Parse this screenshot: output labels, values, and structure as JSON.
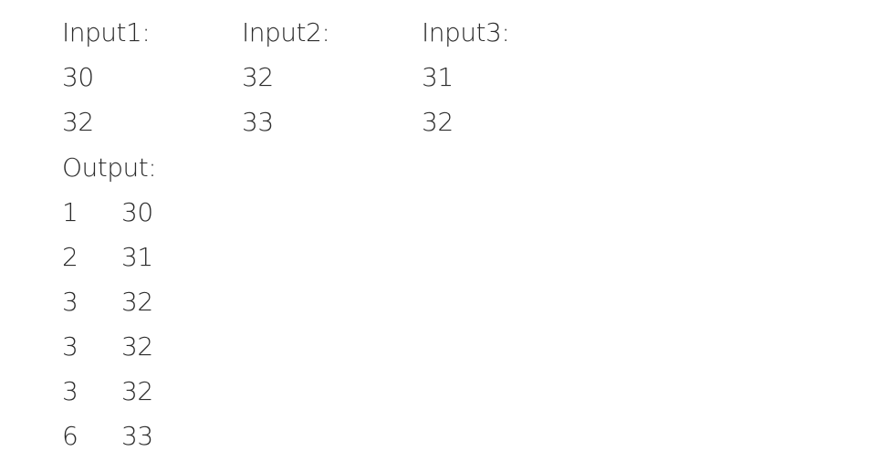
{
  "inputs": [
    {
      "label": "Input1:",
      "values": [
        "30",
        "32"
      ]
    },
    {
      "label": "Input2:",
      "values": [
        "32",
        "33"
      ]
    },
    {
      "label": "Input3:",
      "values": [
        "31",
        "32"
      ]
    }
  ],
  "output": {
    "label": "Output:",
    "rows": [
      {
        "index": "1",
        "value": "30"
      },
      {
        "index": "2",
        "value": "31"
      },
      {
        "index": "3",
        "value": "32"
      },
      {
        "index": "3",
        "value": "32"
      },
      {
        "index": "3",
        "value": "32"
      },
      {
        "index": "6",
        "value": "33"
      }
    ]
  }
}
